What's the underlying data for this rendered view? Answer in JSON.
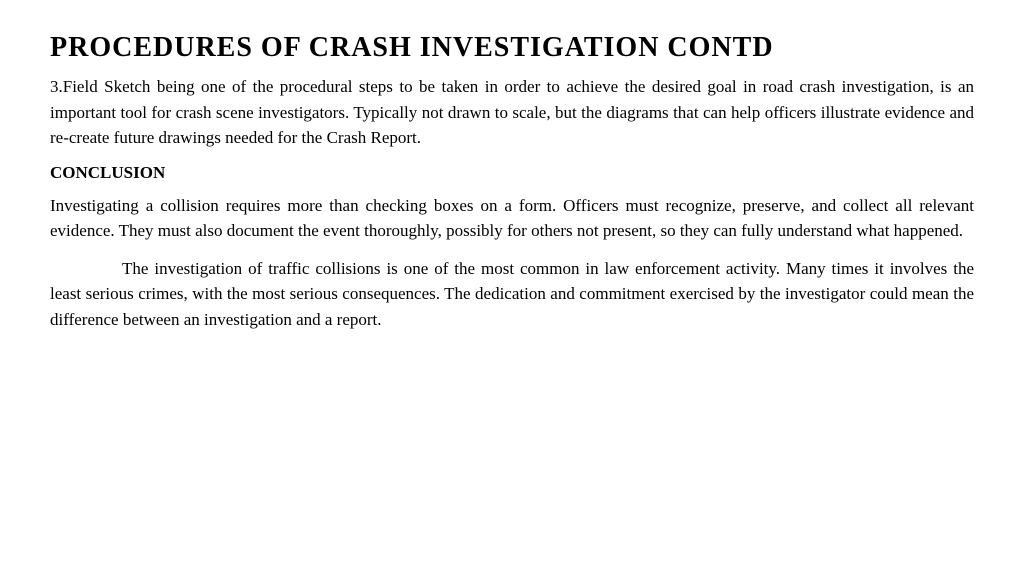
{
  "document": {
    "title": "PROCEDURES OF CRASH INVESTIGATION CONTD",
    "paragraph1": "3.Field Sketch being one of the procedural steps to be taken in order to achieve the desired goal in road crash investigation, is an important tool for crash scene investigators. Typically not drawn to scale, but the diagrams that can help officers illustrate evidence and re-create future drawings needed for the  Crash Report.",
    "subheading": "CONCLUSION",
    "paragraph2": " Investigating a collision requires more than checking boxes on a form. Officers must recognize, preserve, and collect all relevant evidence. They must also document the event thoroughly, possibly for others not present, so they can fully understand what happened.",
    "paragraph3": "The investigation of traffic collisions is one of the most common in law enforcement activity. Many times it involves the least serious crimes, with the most serious consequences. The dedication and commitment exercised by the investigator could mean the difference between an investigation and a report.",
    "colors": {
      "background": "#ffffff",
      "text": "#000000"
    },
    "typography": {
      "title_fontsize": 28,
      "body_fontsize": 17,
      "font_family": "Comic Sans MS"
    }
  }
}
